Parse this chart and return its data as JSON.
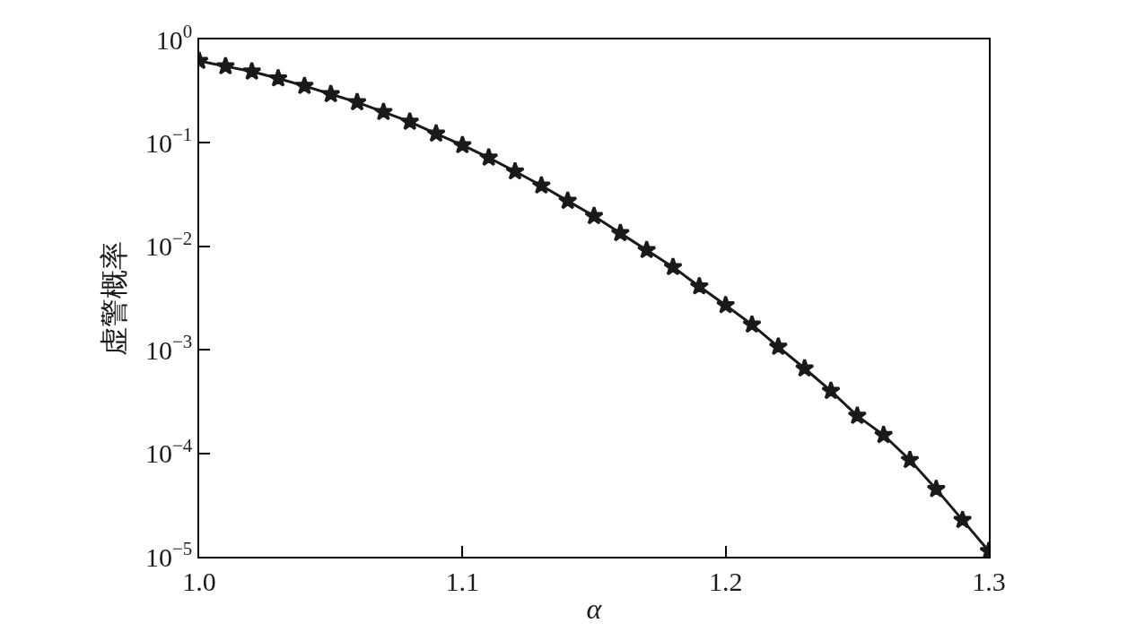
{
  "chart_data": {
    "type": "line",
    "xlabel": "α",
    "ylabel": "虚警概率",
    "log": "y",
    "grid": false,
    "marker": "star",
    "line_style": "solid",
    "x": [
      1.0,
      1.01,
      1.02,
      1.03,
      1.04,
      1.05,
      1.06,
      1.07,
      1.08,
      1.09,
      1.1,
      1.11,
      1.12,
      1.13,
      1.14,
      1.15,
      1.16,
      1.17,
      1.18,
      1.19,
      1.2,
      1.21,
      1.22,
      1.23,
      1.24,
      1.25,
      1.26,
      1.27,
      1.28,
      1.29,
      1.3
    ],
    "series": [
      {
        "color": "#1a1a1a",
        "values": [
          0.62,
          0.55,
          0.49,
          0.42,
          0.355,
          0.296,
          0.247,
          0.199,
          0.16,
          0.123,
          0.095,
          0.072,
          0.053,
          0.0387,
          0.0275,
          0.0196,
          0.0134,
          0.0092,
          0.0063,
          0.0041,
          0.0027,
          0.00175,
          0.00107,
          0.00066,
          0.0004,
          0.00023,
          0.00015,
          8.6e-05,
          4.5e-05,
          2.26e-05,
          1.13e-05
        ]
      }
    ],
    "xlim": [
      1.0,
      1.3
    ],
    "xticks": [
      {
        "value": 1.0,
        "label": "1.0"
      },
      1.1,
      1.2,
      1.3
    ],
    "ylim": [
      1e-05,
      1
    ],
    "yticks": [
      {
        "value": 1,
        "label": "10$^{0}$"
      },
      {
        "value": 0.1,
        "label": "10$^{−1}$"
      },
      {
        "value": 0.01,
        "label": "10$^{−2}$"
      },
      {
        "value": 0.001,
        "label": "10$^{−3}$"
      },
      {
        "value": 0.0001,
        "label": "10$^{−4}$"
      },
      {
        "value": 1e-05,
        "label": "10$^{−5}$"
      }
    ]
  }
}
